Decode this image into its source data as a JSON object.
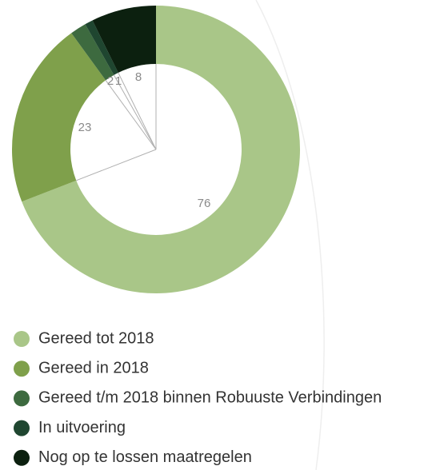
{
  "chart_data": {
    "type": "donut",
    "categories": [
      "Gereed tot 2018",
      "Gereed in 2018",
      "Gereed t/m 2018 binnen Robuuste Verbindingen",
      "In uitvoering",
      "Nog op te lossen maatregelen"
    ],
    "values": [
      76,
      23,
      2,
      1,
      8
    ],
    "colors": [
      "#a9c688",
      "#7fa04b",
      "#3d6a3f",
      "#1f4630",
      "#0c200f"
    ]
  }
}
